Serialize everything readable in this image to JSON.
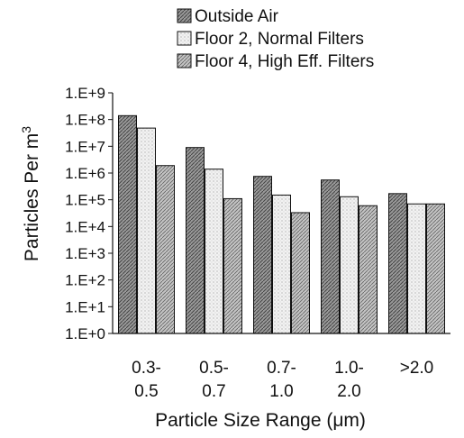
{
  "chart_data": {
    "type": "bar",
    "xlabel": "Particle Size Range (μm)",
    "ylabel_main": "Particles Per m",
    "ylabel_sup": "3",
    "y_scale": "log",
    "ylim": [
      1,
      1000000000
    ],
    "y_tick_labels": [
      "1.E+0",
      "1.E+1",
      "1.E+2",
      "1.E+3",
      "1.E+4",
      "1.E+5",
      "1.E+6",
      "1.E+7",
      "1.E+8",
      "1.E+9"
    ],
    "grid": false,
    "legend_position": "top",
    "categories": [
      [
        "0.3-",
        "0.5"
      ],
      [
        "0.5-",
        "0.7"
      ],
      [
        "0.7-",
        "1.0"
      ],
      [
        "1.0-",
        "2.0"
      ],
      [
        ">2.0"
      ]
    ],
    "series": [
      {
        "name": "Outside Air",
        "values": [
          140000000,
          9000000,
          750000,
          550000,
          170000
        ],
        "color": "#8a8a8a",
        "pattern": "dense-hatch"
      },
      {
        "name": "Floor 2, Normal Filters",
        "values": [
          48000000,
          1400000,
          150000,
          130000,
          70000
        ],
        "color": "#dcdcdc",
        "pattern": "light-speckle"
      },
      {
        "name": "Floor 4, High Eff. Filters",
        "values": [
          1900000,
          110000,
          33000,
          60000,
          70000
        ],
        "color": "#a8a8a8",
        "pattern": "medium-hatch"
      }
    ]
  }
}
